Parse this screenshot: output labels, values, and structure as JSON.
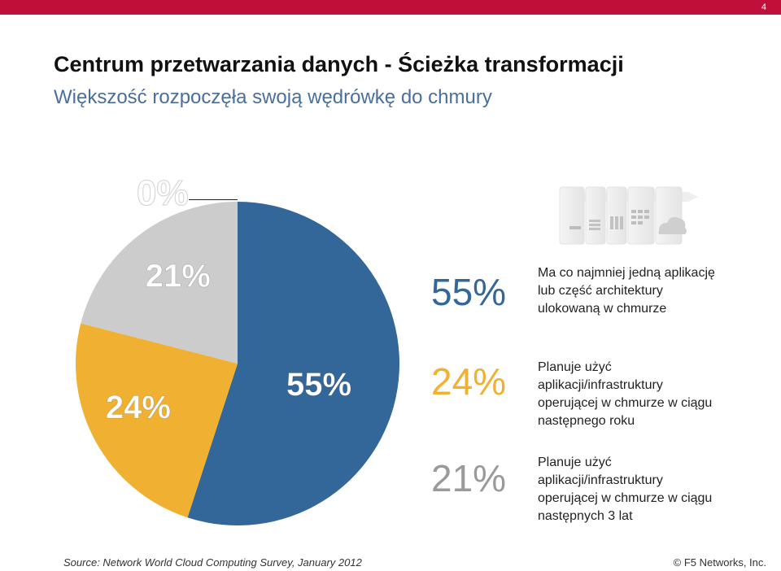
{
  "page": {
    "number": "4"
  },
  "title": "Centrum przetwarzania danych - Ścieżka transformacji",
  "subtitle": "Większość rozpoczęła swoją wędrówkę do chmury",
  "chart_data": {
    "type": "pie",
    "slices": [
      {
        "label": "55%",
        "value": 55,
        "color": "#336699"
      },
      {
        "label": "24%",
        "value": 24,
        "color": "#f0b032"
      },
      {
        "label": "21%",
        "value": 21,
        "color": "#cccccc"
      },
      {
        "label": "0%",
        "value": 0,
        "color": "#ffffff"
      }
    ],
    "label_color": "#ffffff"
  },
  "legend": [
    {
      "pct": "55%",
      "color": "#336699",
      "lines": [
        "Ma co najmniej jedną aplikację",
        "lub część architektury",
        "ulokowaną w chmurze"
      ]
    },
    {
      "pct": "24%",
      "color": "#f0b032",
      "lines": [
        "Planuje użyć",
        "aplikacji/infrastruktury",
        "operującej w chmurze w ciągu",
        "następnego roku"
      ]
    },
    {
      "pct": "21%",
      "color": "#9a9a9a",
      "lines": [
        "Planuje użyć",
        "aplikacji/infrastruktury",
        "operującej w chmurze w ciągu",
        "następnych 3 lat"
      ]
    }
  ],
  "footer": {
    "source": "Source: Network World Cloud Computing Survey, January 2012",
    "copyright": "© F5 Networks, Inc."
  },
  "colors": {
    "brand_bar": "#c0103a",
    "subtitle": "#4a6f9c"
  }
}
